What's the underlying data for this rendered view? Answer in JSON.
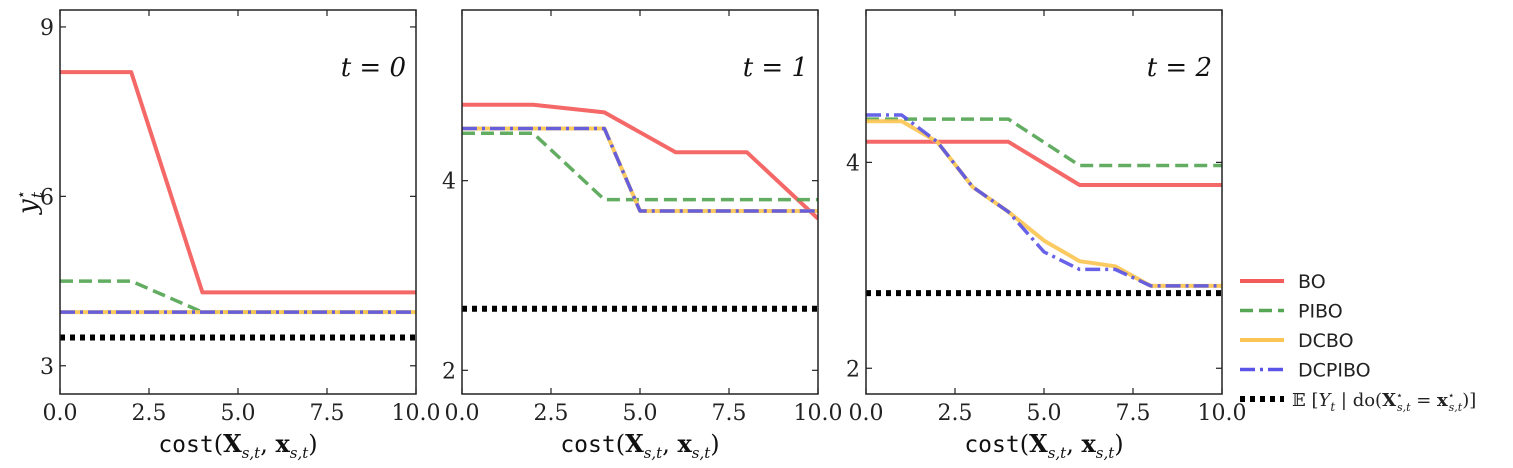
{
  "chart_data": [
    {
      "type": "line",
      "title": "t = 0",
      "xlabel": "cost(X_{s,t}, x_{s,t})",
      "ylabel": "y_t*",
      "xlim": [
        0,
        10
      ],
      "ylim": [
        2.5,
        9.3
      ],
      "xticks": [
        0,
        2.5,
        5,
        7.5,
        10
      ],
      "xtick_labels": [
        "0.0",
        "2.5",
        "5.0",
        "7.5",
        "10.0"
      ],
      "yticks": [
        3,
        6,
        9
      ],
      "ytick_labels": [
        "3",
        "6",
        "9"
      ],
      "series": [
        {
          "name": "BO",
          "x": [
            0,
            2,
            4,
            10
          ],
          "y": [
            8.2,
            8.2,
            4.3,
            4.3
          ]
        },
        {
          "name": "PIBO",
          "x": [
            0,
            2,
            4,
            10
          ],
          "y": [
            4.5,
            4.5,
            3.95,
            3.95
          ]
        },
        {
          "name": "DCBO",
          "x": [
            0,
            10
          ],
          "y": [
            3.95,
            3.95
          ]
        },
        {
          "name": "DCPIBO",
          "x": [
            0,
            10
          ],
          "y": [
            3.95,
            3.95
          ]
        },
        {
          "name": "optimum",
          "x": [
            0,
            10
          ],
          "y": [
            3.5,
            3.5
          ]
        }
      ]
    },
    {
      "type": "line",
      "title": "t = 1",
      "xlabel": "cost(X_{s,t}, x_{s,t})",
      "ylabel": "",
      "xlim": [
        0,
        10
      ],
      "ylim": [
        1.75,
        5.8
      ],
      "xticks": [
        0,
        2.5,
        5,
        7.5,
        10
      ],
      "xtick_labels": [
        "0.0",
        "2.5",
        "5.0",
        "7.5",
        "10.0"
      ],
      "yticks": [
        2,
        4
      ],
      "ytick_labels": [
        "2",
        "4"
      ],
      "series": [
        {
          "name": "BO",
          "x": [
            0,
            2,
            4,
            6,
            8,
            10
          ],
          "y": [
            4.8,
            4.8,
            4.72,
            4.3,
            4.3,
            3.6
          ]
        },
        {
          "name": "PIBO",
          "x": [
            0,
            2,
            4,
            10
          ],
          "y": [
            4.5,
            4.5,
            3.8,
            3.8
          ]
        },
        {
          "name": "DCBO",
          "x": [
            0,
            4,
            5,
            10
          ],
          "y": [
            4.55,
            4.55,
            3.68,
            3.68
          ]
        },
        {
          "name": "DCPIBO",
          "x": [
            0,
            4,
            5,
            10
          ],
          "y": [
            4.55,
            4.55,
            3.68,
            3.68
          ]
        },
        {
          "name": "optimum",
          "x": [
            0,
            10
          ],
          "y": [
            2.65,
            2.65
          ]
        }
      ]
    },
    {
      "type": "line",
      "title": "t = 2",
      "xlabel": "cost(X_{s,t}, x_{s,t})",
      "ylabel": "",
      "xlim": [
        0,
        10
      ],
      "ylim": [
        1.75,
        5.48
      ],
      "xticks": [
        0,
        2.5,
        5,
        7.5,
        10
      ],
      "xtick_labels": [
        "0.0",
        "2.5",
        "5.0",
        "7.5",
        "10.0"
      ],
      "yticks": [
        2,
        4
      ],
      "ytick_labels": [
        "2",
        "4"
      ],
      "series": [
        {
          "name": "BO",
          "x": [
            0,
            4,
            6,
            10
          ],
          "y": [
            4.2,
            4.2,
            3.78,
            3.78
          ]
        },
        {
          "name": "PIBO",
          "x": [
            0,
            4,
            6,
            10
          ],
          "y": [
            4.42,
            4.42,
            3.97,
            3.97
          ]
        },
        {
          "name": "DCBO",
          "x": [
            0,
            1,
            2,
            3,
            4,
            5,
            6,
            7,
            8,
            10
          ],
          "y": [
            4.4,
            4.4,
            4.2,
            3.76,
            3.52,
            3.24,
            3.04,
            2.99,
            2.8,
            2.8
          ]
        },
        {
          "name": "DCPIBO",
          "x": [
            0,
            1,
            2,
            3,
            4,
            5,
            6,
            7,
            8,
            10
          ],
          "y": [
            4.46,
            4.46,
            4.2,
            3.76,
            3.52,
            3.13,
            2.96,
            2.96,
            2.8,
            2.8
          ]
        },
        {
          "name": "optimum",
          "x": [
            0,
            10
          ],
          "y": [
            2.73,
            2.73
          ]
        }
      ]
    }
  ],
  "legend": {
    "placement": "right",
    "entries": [
      {
        "label": "BO",
        "color": "#f45b5b",
        "style": "solid"
      },
      {
        "label": "PIBO",
        "color": "#55a655",
        "style": "dashed"
      },
      {
        "label": "DCBO",
        "color": "#fbc554",
        "style": "solid"
      },
      {
        "label": "DCPIBO",
        "color": "#5a55e6",
        "style": "dashdot"
      },
      {
        "label": "𝔼 [Y_t | do(X*_{s,t} = x*_{s,t})]",
        "color": "#000000",
        "style": "dotted"
      }
    ]
  },
  "colors": {
    "BO": "#f45b5b",
    "PIBO": "#55a655",
    "DCBO": "#fbc554",
    "DCPIBO": "#5a55e6",
    "optimum": "#000000"
  }
}
